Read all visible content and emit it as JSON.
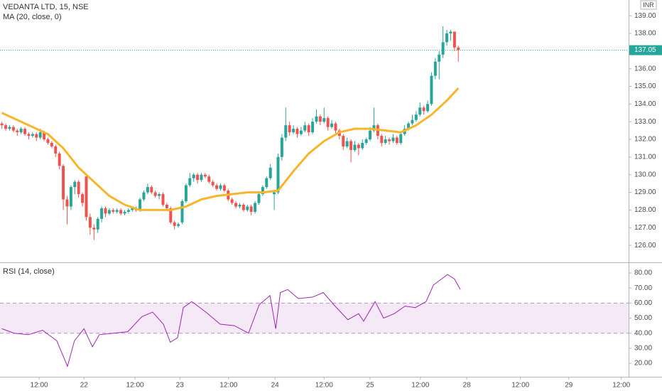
{
  "chart_data": {
    "type": "candlestick",
    "title": "VEDANTA LTD, 15, NSE",
    "currency": "INR",
    "colors": {
      "up": "#26a69a",
      "down": "#ef5350"
    },
    "candles": [
      [
        132.9,
        133.0,
        132.6,
        132.8
      ],
      [
        132.8,
        132.9,
        132.5,
        132.6
      ],
      [
        132.6,
        132.8,
        132.5,
        132.7
      ],
      [
        132.7,
        132.8,
        132.4,
        132.5
      ],
      [
        132.5,
        132.6,
        132.2,
        132.4
      ],
      [
        132.4,
        132.7,
        132.3,
        132.6
      ],
      [
        132.6,
        132.7,
        132.2,
        132.3
      ],
      [
        132.3,
        132.4,
        132.0,
        132.2
      ],
      [
        132.2,
        132.4,
        132.1,
        132.3
      ],
      [
        132.3,
        132.4,
        131.9,
        132.1
      ],
      [
        132.1,
        132.6,
        132.0,
        132.4
      ],
      [
        132.4,
        132.5,
        131.9,
        132.0
      ],
      [
        132.0,
        132.1,
        131.7,
        131.8
      ],
      [
        131.8,
        131.9,
        131.5,
        131.6
      ],
      [
        131.6,
        131.7,
        131.0,
        131.2
      ],
      [
        131.2,
        131.3,
        130.3,
        130.5
      ],
      [
        130.5,
        130.6,
        128.0,
        128.6
      ],
      [
        128.6,
        128.8,
        127.2,
        128.2
      ],
      [
        128.2,
        129.4,
        128.0,
        129.3
      ],
      [
        129.3,
        129.7,
        128.9,
        129.6
      ],
      [
        129.6,
        129.7,
        128.7,
        128.9
      ],
      [
        128.9,
        129.0,
        128.2,
        128.4
      ],
      [
        129.9,
        130.0,
        127.4,
        127.6
      ],
      [
        127.6,
        127.8,
        126.6,
        127.0
      ],
      [
        127.0,
        127.2,
        126.3,
        126.9
      ],
      [
        126.9,
        127.6,
        126.7,
        127.5
      ],
      [
        127.5,
        128.2,
        127.3,
        128.1
      ],
      [
        128.1,
        128.2,
        127.6,
        127.8
      ],
      [
        127.8,
        128.1,
        127.7,
        128.0
      ],
      [
        128.0,
        128.1,
        127.8,
        127.9
      ],
      [
        127.9,
        128.1,
        127.8,
        128.0
      ],
      [
        128.0,
        128.1,
        127.7,
        127.8
      ],
      [
        127.8,
        128.0,
        127.7,
        127.9
      ],
      [
        127.9,
        128.1,
        127.8,
        128.0
      ],
      [
        128.0,
        128.2,
        127.9,
        128.1
      ],
      [
        128.1,
        128.2,
        127.9,
        128.0
      ],
      [
        128.0,
        128.7,
        127.9,
        128.6
      ],
      [
        128.6,
        129.1,
        128.5,
        129.0
      ],
      [
        129.0,
        129.5,
        128.9,
        129.3
      ],
      [
        129.3,
        129.4,
        128.9,
        129.0
      ],
      [
        129.0,
        129.1,
        128.7,
        128.8
      ],
      [
        128.8,
        129.0,
        128.6,
        128.9
      ],
      [
        128.9,
        129.0,
        128.2,
        128.3
      ],
      [
        128.3,
        128.4,
        128.0,
        128.1
      ],
      [
        128.1,
        128.2,
        127.2,
        127.3
      ],
      [
        127.3,
        127.4,
        126.9,
        127.1
      ],
      [
        127.1,
        127.3,
        127.0,
        127.2
      ],
      [
        127.3,
        128.6,
        127.2,
        128.5
      ],
      [
        128.5,
        129.5,
        128.4,
        129.4
      ],
      [
        129.4,
        130.1,
        129.3,
        129.8
      ],
      [
        129.8,
        130.1,
        129.6,
        130.0
      ],
      [
        130.0,
        130.1,
        129.5,
        129.7
      ],
      [
        129.7,
        130.1,
        129.6,
        130.0
      ],
      [
        130.0,
        130.1,
        129.8,
        129.9
      ],
      [
        129.9,
        130.0,
        129.5,
        129.6
      ],
      [
        129.6,
        129.7,
        129.3,
        129.4
      ],
      [
        129.4,
        129.5,
        129.1,
        129.2
      ],
      [
        129.2,
        129.5,
        129.1,
        129.4
      ],
      [
        129.4,
        129.5,
        129.0,
        129.1
      ],
      [
        129.1,
        129.2,
        128.5,
        128.6
      ],
      [
        128.6,
        128.7,
        128.3,
        128.4
      ],
      [
        128.4,
        128.5,
        128.1,
        128.2
      ],
      [
        128.2,
        128.4,
        128.1,
        128.3
      ],
      [
        128.3,
        128.4,
        127.9,
        128.0
      ],
      [
        128.0,
        128.3,
        127.9,
        128.2
      ],
      [
        128.2,
        128.3,
        127.7,
        127.9
      ],
      [
        127.9,
        128.5,
        127.8,
        128.4
      ],
      [
        128.4,
        129.0,
        128.3,
        128.9
      ],
      [
        128.9,
        129.4,
        128.8,
        129.3
      ],
      [
        129.3,
        129.9,
        129.2,
        129.8
      ],
      [
        129.8,
        130.6,
        129.7,
        130.4
      ],
      [
        128.9,
        129.1,
        128.0,
        129.0
      ],
      [
        129.0,
        131.2,
        128.9,
        131.0
      ],
      [
        131.0,
        132.3,
        130.8,
        132.1
      ],
      [
        132.1,
        133.8,
        131.9,
        132.8
      ],
      [
        132.8,
        133.0,
        132.2,
        132.4
      ],
      [
        132.4,
        132.8,
        132.3,
        132.6
      ],
      [
        132.6,
        132.7,
        132.1,
        132.3
      ],
      [
        132.3,
        132.7,
        132.2,
        132.5
      ],
      [
        132.5,
        133.0,
        132.4,
        132.8
      ],
      [
        132.8,
        132.9,
        132.2,
        132.4
      ],
      [
        132.4,
        133.2,
        132.3,
        133.0
      ],
      [
        133.0,
        133.7,
        132.9,
        133.3
      ],
      [
        133.3,
        133.4,
        132.8,
        133.0
      ],
      [
        133.0,
        133.8,
        132.9,
        133.2
      ],
      [
        133.2,
        133.3,
        132.5,
        132.7
      ],
      [
        132.7,
        133.1,
        132.6,
        132.9
      ],
      [
        132.9,
        133.0,
        132.3,
        132.5
      ],
      [
        132.5,
        132.6,
        132.0,
        132.2
      ],
      [
        132.2,
        132.3,
        131.4,
        131.6
      ],
      [
        131.6,
        132.1,
        131.5,
        131.9
      ],
      [
        131.9,
        132.0,
        130.7,
        131.4
      ],
      [
        131.4,
        131.9,
        131.3,
        131.7
      ],
      [
        131.7,
        131.8,
        131.1,
        131.5
      ],
      [
        131.5,
        132.0,
        131.4,
        131.8
      ],
      [
        131.8,
        132.1,
        131.7,
        132.0
      ],
      [
        132.0,
        132.7,
        131.9,
        132.5
      ],
      [
        132.5,
        133.8,
        132.4,
        132.8
      ],
      [
        132.8,
        132.9,
        132.0,
        132.2
      ],
      [
        132.2,
        132.3,
        131.6,
        131.8
      ],
      [
        131.8,
        132.2,
        131.7,
        132.0
      ],
      [
        132.0,
        132.1,
        131.7,
        131.9
      ],
      [
        131.9,
        132.3,
        131.8,
        132.1
      ],
      [
        132.1,
        132.2,
        131.7,
        131.8
      ],
      [
        131.8,
        132.4,
        131.7,
        132.3
      ],
      [
        132.3,
        132.8,
        132.2,
        132.6
      ],
      [
        132.6,
        133.0,
        132.5,
        132.9
      ],
      [
        132.9,
        133.4,
        132.8,
        133.1
      ],
      [
        133.1,
        133.6,
        133.0,
        133.4
      ],
      [
        133.4,
        134.1,
        133.3,
        133.8
      ],
      [
        133.8,
        133.9,
        133.4,
        133.6
      ],
      [
        133.6,
        134.2,
        133.5,
        134.0
      ],
      [
        134.0,
        135.8,
        133.9,
        135.6
      ],
      [
        135.6,
        136.6,
        135.4,
        136.4
      ],
      [
        136.4,
        137.0,
        135.4,
        136.8
      ],
      [
        136.8,
        138.4,
        136.6,
        137.5
      ],
      [
        137.5,
        138.2,
        137.3,
        138.0
      ],
      [
        138.0,
        138.2,
        137.6,
        138.1
      ],
      [
        138.1,
        138.1,
        137.0,
        137.2
      ],
      [
        137.2,
        137.3,
        136.4,
        137.05
      ]
    ],
    "xlim": [
      -0.5,
      163.4
    ],
    "xticks": [
      {
        "value": 9.7,
        "label": "12:00"
      },
      {
        "value": 21.4,
        "label": "22"
      },
      {
        "value": 34.7,
        "label": "12:00"
      },
      {
        "value": 46.4,
        "label": "23"
      },
      {
        "value": 59.1,
        "label": "12:00"
      },
      {
        "value": 71.2,
        "label": "24"
      },
      {
        "value": 84,
        "label": "12:00"
      },
      {
        "value": 96,
        "label": "25"
      },
      {
        "value": 109.1,
        "label": "12:00"
      },
      {
        "value": 121.2,
        "label": "28"
      },
      {
        "value": 135.2,
        "label": "12:00"
      },
      {
        "value": 147.8,
        "label": "29"
      },
      {
        "value": 161.5,
        "label": "12:00"
      }
    ],
    "ylim": [
      125.08,
      139.89
    ],
    "yticks": [
      {
        "value": 126,
        "label": "126.00"
      },
      {
        "value": 127,
        "label": "127.00"
      },
      {
        "value": 128,
        "label": "128.00"
      },
      {
        "value": 129,
        "label": "129.00"
      },
      {
        "value": 130,
        "label": "130.00"
      },
      {
        "value": 131,
        "label": "131.00"
      },
      {
        "value": 132,
        "label": "132.00"
      },
      {
        "value": 133,
        "label": "133.00"
      },
      {
        "value": 134,
        "label": "134.00"
      },
      {
        "value": 135,
        "label": "135.00"
      },
      {
        "value": 136,
        "label": "136.00"
      },
      {
        "value": 138,
        "label": "138.00"
      },
      {
        "value": 139,
        "label": "139.00"
      }
    ],
    "ma": {
      "name": "MA (20, close, 0)",
      "color": "#f7b52c",
      "x": [
        0,
        4,
        8,
        12,
        16,
        20,
        24,
        28,
        32,
        36,
        40,
        44,
        48,
        52,
        56,
        60,
        64,
        68,
        72,
        76,
        80,
        84,
        88,
        92,
        96,
        100,
        104,
        108,
        112,
        116,
        119
      ],
      "values": [
        133.5,
        133.1,
        132.7,
        132.3,
        131.5,
        130.4,
        129.6,
        128.8,
        128.3,
        128.0,
        128.0,
        128.0,
        128.2,
        128.6,
        128.8,
        128.9,
        129.0,
        129.0,
        129.1,
        130.2,
        131.2,
        131.9,
        132.4,
        132.6,
        132.6,
        132.5,
        132.4,
        132.8,
        133.4,
        134.2,
        134.9
      ]
    },
    "rsi": {
      "name": "RSI (14, close)",
      "color": "#9c27b0",
      "x": [
        0,
        3.2,
        6.9,
        10.6,
        14.3,
        17.1,
        18.9,
        21.4,
        23.6,
        25.4,
        29.1,
        32.8,
        36.5,
        39.3,
        42.1,
        43.9,
        45.8,
        47.3,
        49.5,
        53.2,
        56.9,
        60.6,
        64.3,
        67.1,
        69.9,
        71.4,
        72.6,
        74.5,
        77.3,
        81,
        83.8,
        86.5,
        90.2,
        93,
        94.3,
        97.3,
        99.5,
        102.3,
        105.1,
        107.8,
        110.6,
        112.5,
        116.2,
        118,
        119.5
      ],
      "values": [
        43,
        40,
        39,
        42,
        35,
        18,
        35,
        43,
        31,
        39,
        40,
        41,
        51,
        54,
        46,
        34,
        37,
        57,
        61,
        54,
        46,
        45,
        40,
        59,
        65,
        43,
        67,
        69,
        63,
        64,
        67,
        59,
        49,
        53,
        48,
        61,
        50,
        53,
        58,
        57,
        61,
        72,
        79,
        76,
        69
      ],
      "ylim": [
        7.3,
        86.6
      ],
      "yticks": [
        {
          "value": 20,
          "label": "20.00"
        },
        {
          "value": 30,
          "label": "30.00"
        },
        {
          "value": 40,
          "label": "40.00"
        },
        {
          "value": 50,
          "label": "50.00"
        },
        {
          "value": 60,
          "label": "60.00"
        },
        {
          "value": 70,
          "label": "70.00"
        },
        {
          "value": 80,
          "label": "80.00"
        }
      ],
      "band": [
        40,
        60
      ]
    }
  }
}
